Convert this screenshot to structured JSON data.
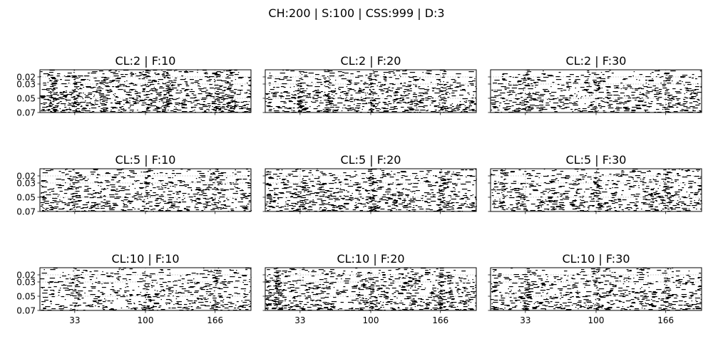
{
  "figure": {
    "suptitle": "CH:200 | S:100 | CSS:999 | D:3"
  },
  "chart_data": [
    {
      "type": "raster",
      "title": "CL:2 | F:10",
      "xlim": [
        0,
        200
      ],
      "ylim": [
        0.07,
        0.01
      ],
      "xticks": [
        33,
        100,
        166
      ],
      "xtick_labels": [
        "33",
        "100",
        "166"
      ],
      "yticks": [
        0.02,
        0.03,
        0.05,
        0.07
      ],
      "ytick_labels": [
        "0.02",
        "0.03",
        "0.05",
        "0.07"
      ],
      "grid": true,
      "seed": 11,
      "density": 0.36,
      "bursts": [
        10,
        33,
        58,
        100,
        118,
        166,
        178
      ]
    },
    {
      "type": "raster",
      "title": "CL:2 | F:20",
      "xlim": [
        0,
        200
      ],
      "ylim": [
        0.07,
        0.01
      ],
      "xticks": [
        33,
        100,
        166
      ],
      "xtick_labels": [
        "33",
        "100",
        "166"
      ],
      "yticks": [
        0.02,
        0.03,
        0.05,
        0.07
      ],
      "ytick_labels": [
        "0.02",
        "0.03",
        "0.05",
        "0.07"
      ],
      "grid": true,
      "seed": 22,
      "density": 0.32,
      "bursts": [
        33,
        58,
        100,
        166
      ]
    },
    {
      "type": "raster",
      "title": "CL:2 | F:30",
      "xlim": [
        0,
        200
      ],
      "ylim": [
        0.07,
        0.01
      ],
      "xticks": [
        33,
        100,
        166
      ],
      "xtick_labels": [
        "33",
        "100",
        "166"
      ],
      "yticks": [
        0.02,
        0.03,
        0.05,
        0.07
      ],
      "ytick_labels": [
        "0.02",
        "0.03",
        "0.05",
        "0.07"
      ],
      "grid": true,
      "seed": 33,
      "density": 0.3,
      "bursts": [
        33,
        100,
        166
      ]
    },
    {
      "type": "raster",
      "title": "CL:5 | F:10",
      "xlim": [
        0,
        200
      ],
      "ylim": [
        0.07,
        0.01
      ],
      "xticks": [
        33,
        100,
        166
      ],
      "xtick_labels": [
        "33",
        "100",
        "166"
      ],
      "yticks": [
        0.02,
        0.03,
        0.05,
        0.07
      ],
      "ytick_labels": [
        "0.02",
        "0.03",
        "0.05",
        "0.07"
      ],
      "grid": true,
      "seed": 44,
      "density": 0.3,
      "bursts": [
        33,
        100,
        166
      ]
    },
    {
      "type": "raster",
      "title": "CL:5 | F:20",
      "xlim": [
        0,
        200
      ],
      "ylim": [
        0.07,
        0.01
      ],
      "xticks": [
        33,
        100,
        166
      ],
      "xtick_labels": [
        "33",
        "100",
        "166"
      ],
      "yticks": [
        0.02,
        0.03,
        0.05,
        0.07
      ],
      "ytick_labels": [
        "0.02",
        "0.03",
        "0.05",
        "0.07"
      ],
      "grid": true,
      "seed": 55,
      "density": 0.33,
      "bursts": [
        33,
        100,
        166
      ]
    },
    {
      "type": "raster",
      "title": "CL:5 | F:30",
      "xlim": [
        0,
        200
      ],
      "ylim": [
        0.07,
        0.01
      ],
      "xticks": [
        33,
        100,
        166
      ],
      "xtick_labels": [
        "33",
        "100",
        "166"
      ],
      "yticks": [
        0.02,
        0.03,
        0.05,
        0.07
      ],
      "ytick_labels": [
        "0.02",
        "0.03",
        "0.05",
        "0.07"
      ],
      "grid": true,
      "seed": 66,
      "density": 0.3,
      "bursts": [
        10,
        100,
        166
      ]
    },
    {
      "type": "raster",
      "title": "CL:10 | F:10",
      "xlim": [
        0,
        200
      ],
      "ylim": [
        0.07,
        0.01
      ],
      "xticks": [
        33,
        100,
        166
      ],
      "xtick_labels": [
        "33",
        "100",
        "166"
      ],
      "yticks": [
        0.02,
        0.03,
        0.05,
        0.07
      ],
      "ytick_labels": [
        "0.02",
        "0.03",
        "0.05",
        "0.07"
      ],
      "grid": true,
      "seed": 77,
      "density": 0.28,
      "bursts": [
        33,
        100,
        166
      ]
    },
    {
      "type": "raster",
      "title": "CL:10 | F:20",
      "xlim": [
        0,
        200
      ],
      "ylim": [
        0.07,
        0.01
      ],
      "xticks": [
        33,
        100,
        166
      ],
      "xtick_labels": [
        "33",
        "100",
        "166"
      ],
      "yticks": [
        0.02,
        0.03,
        0.05,
        0.07
      ],
      "ytick_labels": [
        "0.02",
        "0.03",
        "0.05",
        "0.07"
      ],
      "grid": true,
      "seed": 88,
      "density": 0.34,
      "bursts": [
        10,
        100,
        166
      ]
    },
    {
      "type": "raster",
      "title": "CL:10 | F:30",
      "xlim": [
        0,
        200
      ],
      "ylim": [
        0.07,
        0.01
      ],
      "xticks": [
        33,
        100,
        166
      ],
      "xtick_labels": [
        "33",
        "100",
        "166"
      ],
      "yticks": [
        0.02,
        0.03,
        0.05,
        0.07
      ],
      "ytick_labels": [
        "0.02",
        "0.03",
        "0.05",
        "0.07"
      ],
      "grid": true,
      "seed": 99,
      "density": 0.3,
      "bursts": [
        33,
        100,
        166
      ]
    }
  ],
  "colors": {
    "mark": "#000000",
    "grid": "#b0b0b0",
    "axis": "#000000",
    "background": "#ffffff"
  }
}
